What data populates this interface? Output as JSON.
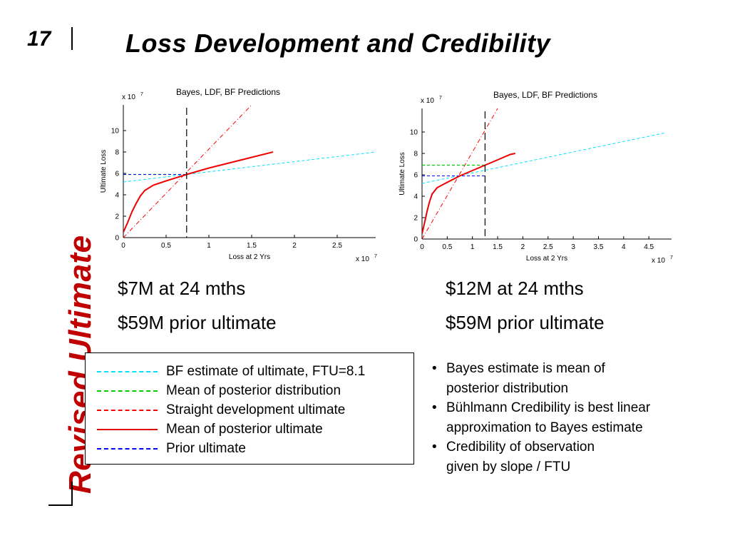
{
  "slide": {
    "number": "17",
    "title": "Loss Development and Credibility",
    "side_label": "Revised Ultimate"
  },
  "captions": {
    "left": [
      "$7M at 24 mths",
      "$59M prior ultimate"
    ],
    "right": [
      "$12M at 24 mths",
      "$59M prior ultimate"
    ]
  },
  "legend": [
    {
      "label": "BF estimate of ultimate, FTU=8.1",
      "color": "#00e0ff",
      "style": "dashed"
    },
    {
      "label": "Mean of posterior distribution",
      "color": "#00cc00",
      "style": "dashed"
    },
    {
      "label": "Straight development ultimate",
      "color": "#ff0000",
      "style": "dashed"
    },
    {
      "label": "Mean of posterior ultimate",
      "color": "#e00000",
      "style": "solid"
    },
    {
      "label": "Prior ultimate",
      "color": "#0000ff",
      "style": "dashed"
    }
  ],
  "bullets": [
    {
      "line1": "Bayes estimate is mean of",
      "line2": "posterior distribution"
    },
    {
      "line1": "Bühlmann Credibility is best linear",
      "line2": "approximation to Bayes estimate"
    },
    {
      "line1": "Credibility of observation",
      "line2": "given by slope / FTU"
    }
  ],
  "chart_data": [
    {
      "type": "line",
      "title": "Bayes, LDF, BF Predictions",
      "xlabel": "Loss at 2 Yrs",
      "ylabel": "Ultimate Loss",
      "x_multiplier": "x 10",
      "x_multiplier_exp": "7",
      "y_multiplier": "x 10",
      "y_multiplier_exp": "7",
      "xlim": [
        0,
        2.95
      ],
      "ylim": [
        0,
        12.4
      ],
      "xticks": [
        "0",
        "0.5",
        "1",
        "1.5",
        "2",
        "2.5"
      ],
      "xtick_values": [
        0,
        0.5,
        1,
        1.5,
        2,
        2.5
      ],
      "yticks": [
        "0",
        "2",
        "4",
        "6",
        "8",
        "10"
      ],
      "ytick_values": [
        0,
        2,
        4,
        6,
        8,
        10
      ],
      "observed_x": 0.74,
      "series": [
        {
          "role": "bf",
          "color": "#00e0ff",
          "dash": "4,3",
          "width": 1,
          "points": [
            [
              0,
              5.2
            ],
            [
              2.95,
              8.0
            ]
          ]
        },
        {
          "role": "straight",
          "color": "#ff0000",
          "dash": "6,3,1,3",
          "width": 1,
          "points": [
            [
              0,
              0
            ],
            [
              1.5,
              12.4
            ]
          ]
        },
        {
          "role": "posterior-mean",
          "color": "#00cc00",
          "dash": "4,3",
          "width": 1.2,
          "points": [
            [
              0,
              5.9
            ],
            [
              0.74,
              5.9
            ]
          ]
        },
        {
          "role": "prior",
          "color": "#0000ff",
          "dash": "4,3",
          "width": 1,
          "points": [
            [
              0,
              5.9
            ],
            [
              0.74,
              5.9
            ]
          ]
        },
        {
          "role": "posterior-curve",
          "color": "#ee0000",
          "dash": "",
          "width": 2,
          "points": [
            [
              0,
              0.5
            ],
            [
              0.05,
              1.4
            ],
            [
              0.1,
              2.4
            ],
            [
              0.15,
              3.2
            ],
            [
              0.2,
              3.9
            ],
            [
              0.25,
              4.4
            ],
            [
              0.35,
              4.9
            ],
            [
              0.5,
              5.3
            ],
            [
              0.74,
              5.9
            ],
            [
              1.0,
              6.5
            ],
            [
              1.25,
              7.0
            ],
            [
              1.5,
              7.5
            ],
            [
              1.75,
              8.0
            ]
          ]
        }
      ]
    },
    {
      "type": "line",
      "title": "Bayes, LDF, BF Predictions",
      "xlabel": "Loss at 2 Yrs",
      "ylabel": "Ultimate Loss",
      "x_multiplier": "x 10",
      "x_multiplier_exp": "7",
      "y_multiplier": "x 10",
      "y_multiplier_exp": "7",
      "xlim": [
        0,
        4.95
      ],
      "ylim": [
        0,
        12.2
      ],
      "xticks": [
        "0",
        "0.5",
        "1",
        "1.5",
        "2",
        "2.5",
        "3",
        "3.5",
        "4",
        "4.5"
      ],
      "xtick_values": [
        0,
        0.5,
        1,
        1.5,
        2,
        2.5,
        3,
        3.5,
        4,
        4.5
      ],
      "yticks": [
        "0",
        "2",
        "4",
        "6",
        "8",
        "10"
      ],
      "ytick_values": [
        0,
        2,
        4,
        6,
        8,
        10
      ],
      "observed_x": 1.25,
      "series": [
        {
          "role": "bf",
          "color": "#00e0ff",
          "dash": "4,3",
          "width": 1,
          "points": [
            [
              0,
              5.2
            ],
            [
              4.8,
              9.9
            ]
          ]
        },
        {
          "role": "straight",
          "color": "#ff0000",
          "dash": "6,3,1,3",
          "width": 1,
          "points": [
            [
              0,
              0
            ],
            [
              1.5,
              12.2
            ]
          ]
        },
        {
          "role": "posterior-mean",
          "color": "#00cc00",
          "dash": "4,3",
          "width": 1.2,
          "points": [
            [
              0,
              6.9
            ],
            [
              1.25,
              6.9
            ]
          ]
        },
        {
          "role": "prior",
          "color": "#0000ff",
          "dash": "4,3",
          "width": 1,
          "points": [
            [
              0,
              5.9
            ],
            [
              1.25,
              5.9
            ]
          ]
        },
        {
          "role": "posterior-curve",
          "color": "#ee0000",
          "dash": "",
          "width": 2,
          "points": [
            [
              0,
              0.5
            ],
            [
              0.05,
              1.5
            ],
            [
              0.1,
              2.6
            ],
            [
              0.15,
              3.5
            ],
            [
              0.2,
              4.2
            ],
            [
              0.3,
              4.8
            ],
            [
              0.5,
              5.3
            ],
            [
              0.75,
              5.9
            ],
            [
              1.0,
              6.4
            ],
            [
              1.25,
              6.9
            ],
            [
              1.5,
              7.4
            ],
            [
              1.75,
              7.9
            ],
            [
              1.85,
              8.0
            ]
          ]
        }
      ]
    }
  ]
}
